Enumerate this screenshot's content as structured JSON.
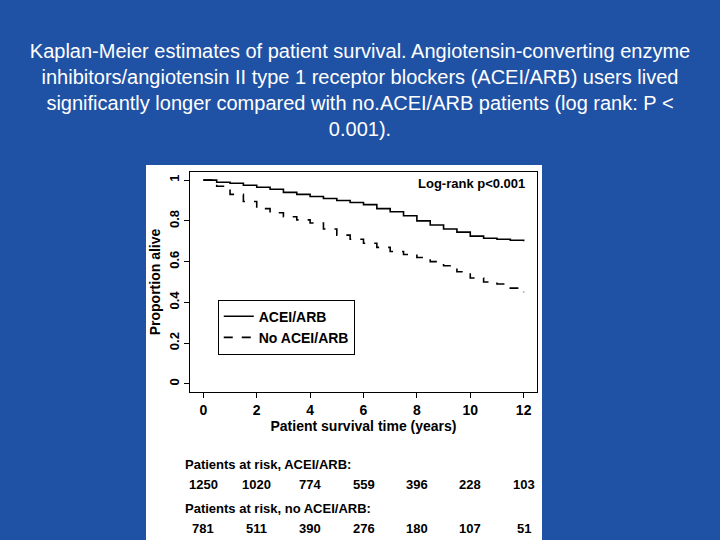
{
  "slide": {
    "title": "Kaplan-Meier estimates of patient survival. Angiotensin-converting enzyme inhibitors/angiotensin II type 1 receptor blockers (ACEI/ARB) users lived significantly longer compared with no.ACEI/ARB patients (log rank: P < 0.001)."
  },
  "chart_data": {
    "type": "line",
    "x_label": "Patient survival time (years)",
    "y_label": "Proportion alive",
    "annotations": [
      "Log-rank p<0.001"
    ],
    "xlim": [
      -0.5,
      12.5
    ],
    "xticks": [
      0,
      2,
      4,
      6,
      8,
      10,
      12
    ],
    "ylim": [
      -0.04,
      1.04
    ],
    "yticks": [
      0,
      0.2,
      0.4,
      0.6,
      0.8,
      1
    ],
    "legend": "left",
    "grid": false,
    "series": [
      {
        "name": "ACEI/ARB",
        "color": "#000000",
        "line_style": "solid",
        "x": [
          0,
          0.5,
          1,
          1.5,
          2,
          2.5,
          3,
          3.5,
          4,
          4.5,
          5,
          5.5,
          6,
          6.5,
          7,
          7.5,
          8,
          8.5,
          9,
          9.5,
          10,
          10.5,
          11,
          11.5,
          12
        ],
        "values": [
          1,
          0.99,
          0.985,
          0.975,
          0.965,
          0.955,
          0.94,
          0.93,
          0.92,
          0.91,
          0.9,
          0.89,
          0.88,
          0.86,
          0.845,
          0.825,
          0.8,
          0.78,
          0.76,
          0.745,
          0.725,
          0.715,
          0.71,
          0.705,
          0.7
        ]
      },
      {
        "name": "No ACEI/ARB",
        "color": "#000000",
        "line_style": "dashed",
        "x": [
          0,
          0.5,
          1,
          1.5,
          2,
          2.5,
          3,
          3.5,
          4,
          4.5,
          5,
          5.5,
          6,
          6.5,
          7,
          7.5,
          8,
          8.5,
          9,
          9.5,
          10,
          10.5,
          11,
          11.5,
          12
        ],
        "values": [
          1,
          0.97,
          0.93,
          0.895,
          0.86,
          0.84,
          0.82,
          0.805,
          0.79,
          0.76,
          0.73,
          0.71,
          0.69,
          0.67,
          0.65,
          0.635,
          0.62,
          0.6,
          0.58,
          0.55,
          0.52,
          0.5,
          0.49,
          0.47,
          0.45
        ]
      }
    ],
    "at_risk": [
      {
        "label": "Patients at risk, ACEI/ARB:",
        "x": [
          0,
          2,
          4,
          6,
          8,
          10,
          12
        ],
        "values": [
          1250,
          1020,
          774,
          559,
          396,
          228,
          103
        ]
      },
      {
        "label": "Patients at risk, no ACEI/ARB:",
        "x": [
          0,
          2,
          4,
          6,
          8,
          10,
          12
        ],
        "values": [
          781,
          511,
          390,
          276,
          180,
          107,
          51
        ]
      }
    ]
  }
}
